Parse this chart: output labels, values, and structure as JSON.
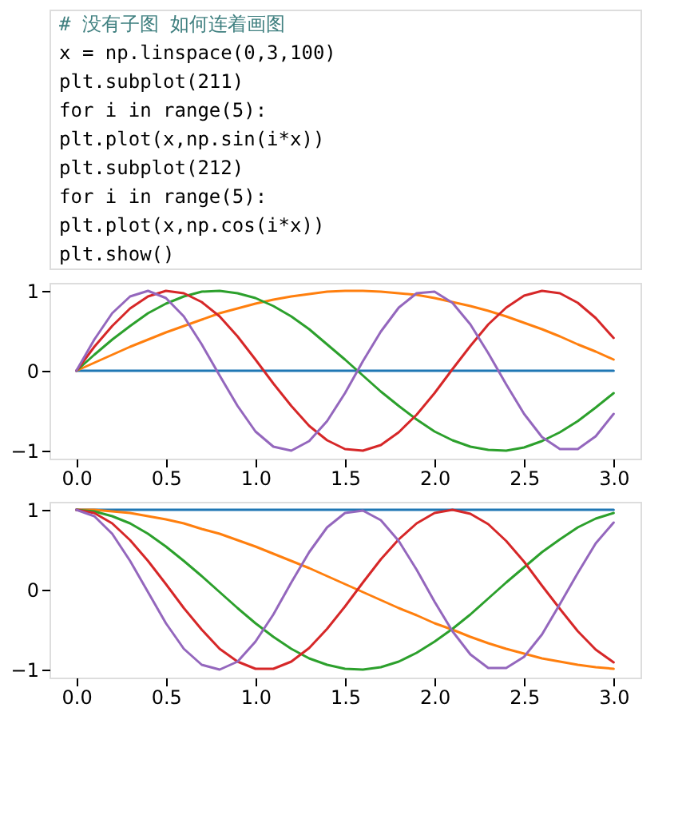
{
  "chart_data": [
    {
      "type": "line",
      "annotations": [
        "# 没有子图 如何连着画图",
        "x = np.linspace(0,3,100)",
        "plt.subplot(211)",
        "for i in range(5):",
        "    plt.plot(x,np.sin(i*x))",
        "plt.subplot(212)",
        "for i in range(5):",
        "    plt.plot(x,np.cos(i*x))",
        "plt.show()"
      ],
      "x": [
        0,
        0.1,
        0.2,
        0.3,
        0.4,
        0.5,
        0.6,
        0.7,
        0.8,
        0.9,
        1.0,
        1.1,
        1.2,
        1.3,
        1.4,
        1.5,
        1.6,
        1.7,
        1.8,
        1.9,
        2.0,
        2.1,
        2.2,
        2.3,
        2.4,
        2.5,
        2.6,
        2.7,
        2.8,
        2.9,
        3.0
      ],
      "series": [
        {
          "color": "#1f77b4",
          "values": [
            0,
            0,
            0,
            0,
            0,
            0,
            0,
            0,
            0,
            0,
            0,
            0,
            0,
            0,
            0,
            0,
            0,
            0,
            0,
            0,
            0,
            0,
            0,
            0,
            0,
            0,
            0,
            0,
            0,
            0,
            0
          ]
        },
        {
          "color": "#ff7f0e",
          "values": [
            0,
            0.1,
            0.2,
            0.3,
            0.39,
            0.48,
            0.56,
            0.64,
            0.72,
            0.78,
            0.84,
            0.89,
            0.93,
            0.96,
            0.99,
            1.0,
            1.0,
            0.99,
            0.97,
            0.95,
            0.91,
            0.86,
            0.81,
            0.75,
            0.68,
            0.6,
            0.52,
            0.43,
            0.33,
            0.24,
            0.14
          ]
        },
        {
          "color": "#2ca02c",
          "values": [
            0,
            0.2,
            0.39,
            0.56,
            0.72,
            0.84,
            0.93,
            0.99,
            1.0,
            0.97,
            0.91,
            0.81,
            0.68,
            0.52,
            0.33,
            0.14,
            -0.06,
            -0.26,
            -0.44,
            -0.61,
            -0.76,
            -0.87,
            -0.95,
            -0.99,
            -1.0,
            -0.96,
            -0.88,
            -0.77,
            -0.63,
            -0.46,
            -0.28
          ]
        },
        {
          "color": "#d62728",
          "values": [
            0,
            0.3,
            0.56,
            0.78,
            0.93,
            1.0,
            0.97,
            0.86,
            0.68,
            0.43,
            0.14,
            -0.16,
            -0.44,
            -0.69,
            -0.87,
            -0.98,
            -1.0,
            -0.93,
            -0.77,
            -0.55,
            -0.28,
            0.02,
            0.31,
            0.58,
            0.79,
            0.94,
            1.0,
            0.97,
            0.85,
            0.66,
            0.41
          ]
        },
        {
          "color": "#9467bd",
          "values": [
            0,
            0.39,
            0.72,
            0.93,
            1.0,
            0.91,
            0.68,
            0.33,
            -0.06,
            -0.44,
            -0.76,
            -0.95,
            -1.0,
            -0.88,
            -0.63,
            -0.28,
            0.12,
            0.49,
            0.79,
            0.97,
            0.99,
            0.85,
            0.58,
            0.22,
            -0.17,
            -0.54,
            -0.83,
            -0.98,
            -0.98,
            -0.82,
            -0.54
          ]
        }
      ],
      "xlim": [
        -0.15,
        3.15
      ],
      "ylim": [
        -1.1,
        1.1
      ],
      "xticks": [
        {
          "value": 0,
          "label": "0.0"
        },
        {
          "value": 0.5,
          "label": "0.5"
        },
        {
          "value": 1,
          "label": "1.0"
        },
        {
          "value": 1.5,
          "label": "1.5"
        },
        {
          "value": 2,
          "label": "2.0"
        },
        {
          "value": 2.5,
          "label": "2.5"
        },
        {
          "value": 3,
          "label": "3.0"
        }
      ],
      "yticks": [
        -1,
        0,
        1
      ],
      "grid": false,
      "marker": "none",
      "line_style": "solid"
    },
    {
      "type": "line",
      "x": [
        0,
        0.1,
        0.2,
        0.3,
        0.4,
        0.5,
        0.6,
        0.7,
        0.8,
        0.9,
        1.0,
        1.1,
        1.2,
        1.3,
        1.4,
        1.5,
        1.6,
        1.7,
        1.8,
        1.9,
        2.0,
        2.1,
        2.2,
        2.3,
        2.4,
        2.5,
        2.6,
        2.7,
        2.8,
        2.9,
        3.0
      ],
      "series": [
        {
          "color": "#1f77b4",
          "values": [
            1,
            1,
            1,
            1,
            1,
            1,
            1,
            1,
            1,
            1,
            1,
            1,
            1,
            1,
            1,
            1,
            1,
            1,
            1,
            1,
            1,
            1,
            1,
            1,
            1,
            1,
            1,
            1,
            1,
            1,
            1
          ]
        },
        {
          "color": "#ff7f0e",
          "values": [
            1,
            1.0,
            0.98,
            0.96,
            0.92,
            0.88,
            0.83,
            0.76,
            0.7,
            0.62,
            0.54,
            0.45,
            0.36,
            0.27,
            0.17,
            0.07,
            -0.03,
            -0.13,
            -0.23,
            -0.32,
            -0.42,
            -0.5,
            -0.59,
            -0.67,
            -0.74,
            -0.8,
            -0.86,
            -0.9,
            -0.94,
            -0.97,
            -0.99
          ]
        },
        {
          "color": "#2ca02c",
          "values": [
            1,
            0.98,
            0.92,
            0.83,
            0.7,
            0.54,
            0.36,
            0.17,
            -0.03,
            -0.23,
            -0.42,
            -0.59,
            -0.74,
            -0.86,
            -0.94,
            -0.99,
            -1.0,
            -0.97,
            -0.9,
            -0.79,
            -0.65,
            -0.49,
            -0.31,
            -0.11,
            0.09,
            0.28,
            0.47,
            0.63,
            0.78,
            0.89,
            0.96
          ]
        },
        {
          "color": "#d62728",
          "values": [
            1,
            0.96,
            0.83,
            0.62,
            0.36,
            0.07,
            -0.23,
            -0.5,
            -0.74,
            -0.9,
            -0.99,
            -0.99,
            -0.9,
            -0.73,
            -0.49,
            -0.21,
            0.09,
            0.38,
            0.63,
            0.83,
            0.96,
            1.0,
            0.95,
            0.82,
            0.61,
            0.35,
            0.05,
            -0.24,
            -0.52,
            -0.75,
            -0.91
          ]
        },
        {
          "color": "#9467bd",
          "values": [
            1,
            0.92,
            0.7,
            0.36,
            -0.03,
            -0.42,
            -0.74,
            -0.94,
            -1.0,
            -0.9,
            -0.65,
            -0.31,
            0.09,
            0.47,
            0.78,
            0.96,
            0.99,
            0.87,
            0.61,
            0.25,
            -0.15,
            -0.52,
            -0.81,
            -0.98,
            -0.98,
            -0.84,
            -0.56,
            -0.18,
            0.21,
            0.58,
            0.84
          ]
        }
      ],
      "xlim": [
        -0.15,
        3.15
      ],
      "ylim": [
        -1.1,
        1.1
      ],
      "xticks": [
        {
          "value": 0,
          "label": "0.0"
        },
        {
          "value": 0.5,
          "label": "0.5"
        },
        {
          "value": 1,
          "label": "1.0"
        },
        {
          "value": 1.5,
          "label": "1.5"
        },
        {
          "value": 2,
          "label": "2.0"
        },
        {
          "value": 2.5,
          "label": "2.5"
        },
        {
          "value": 3,
          "label": "3.0"
        }
      ],
      "yticks": [
        -1,
        0,
        1
      ],
      "grid": false,
      "marker": "none",
      "line_style": "solid"
    }
  ]
}
